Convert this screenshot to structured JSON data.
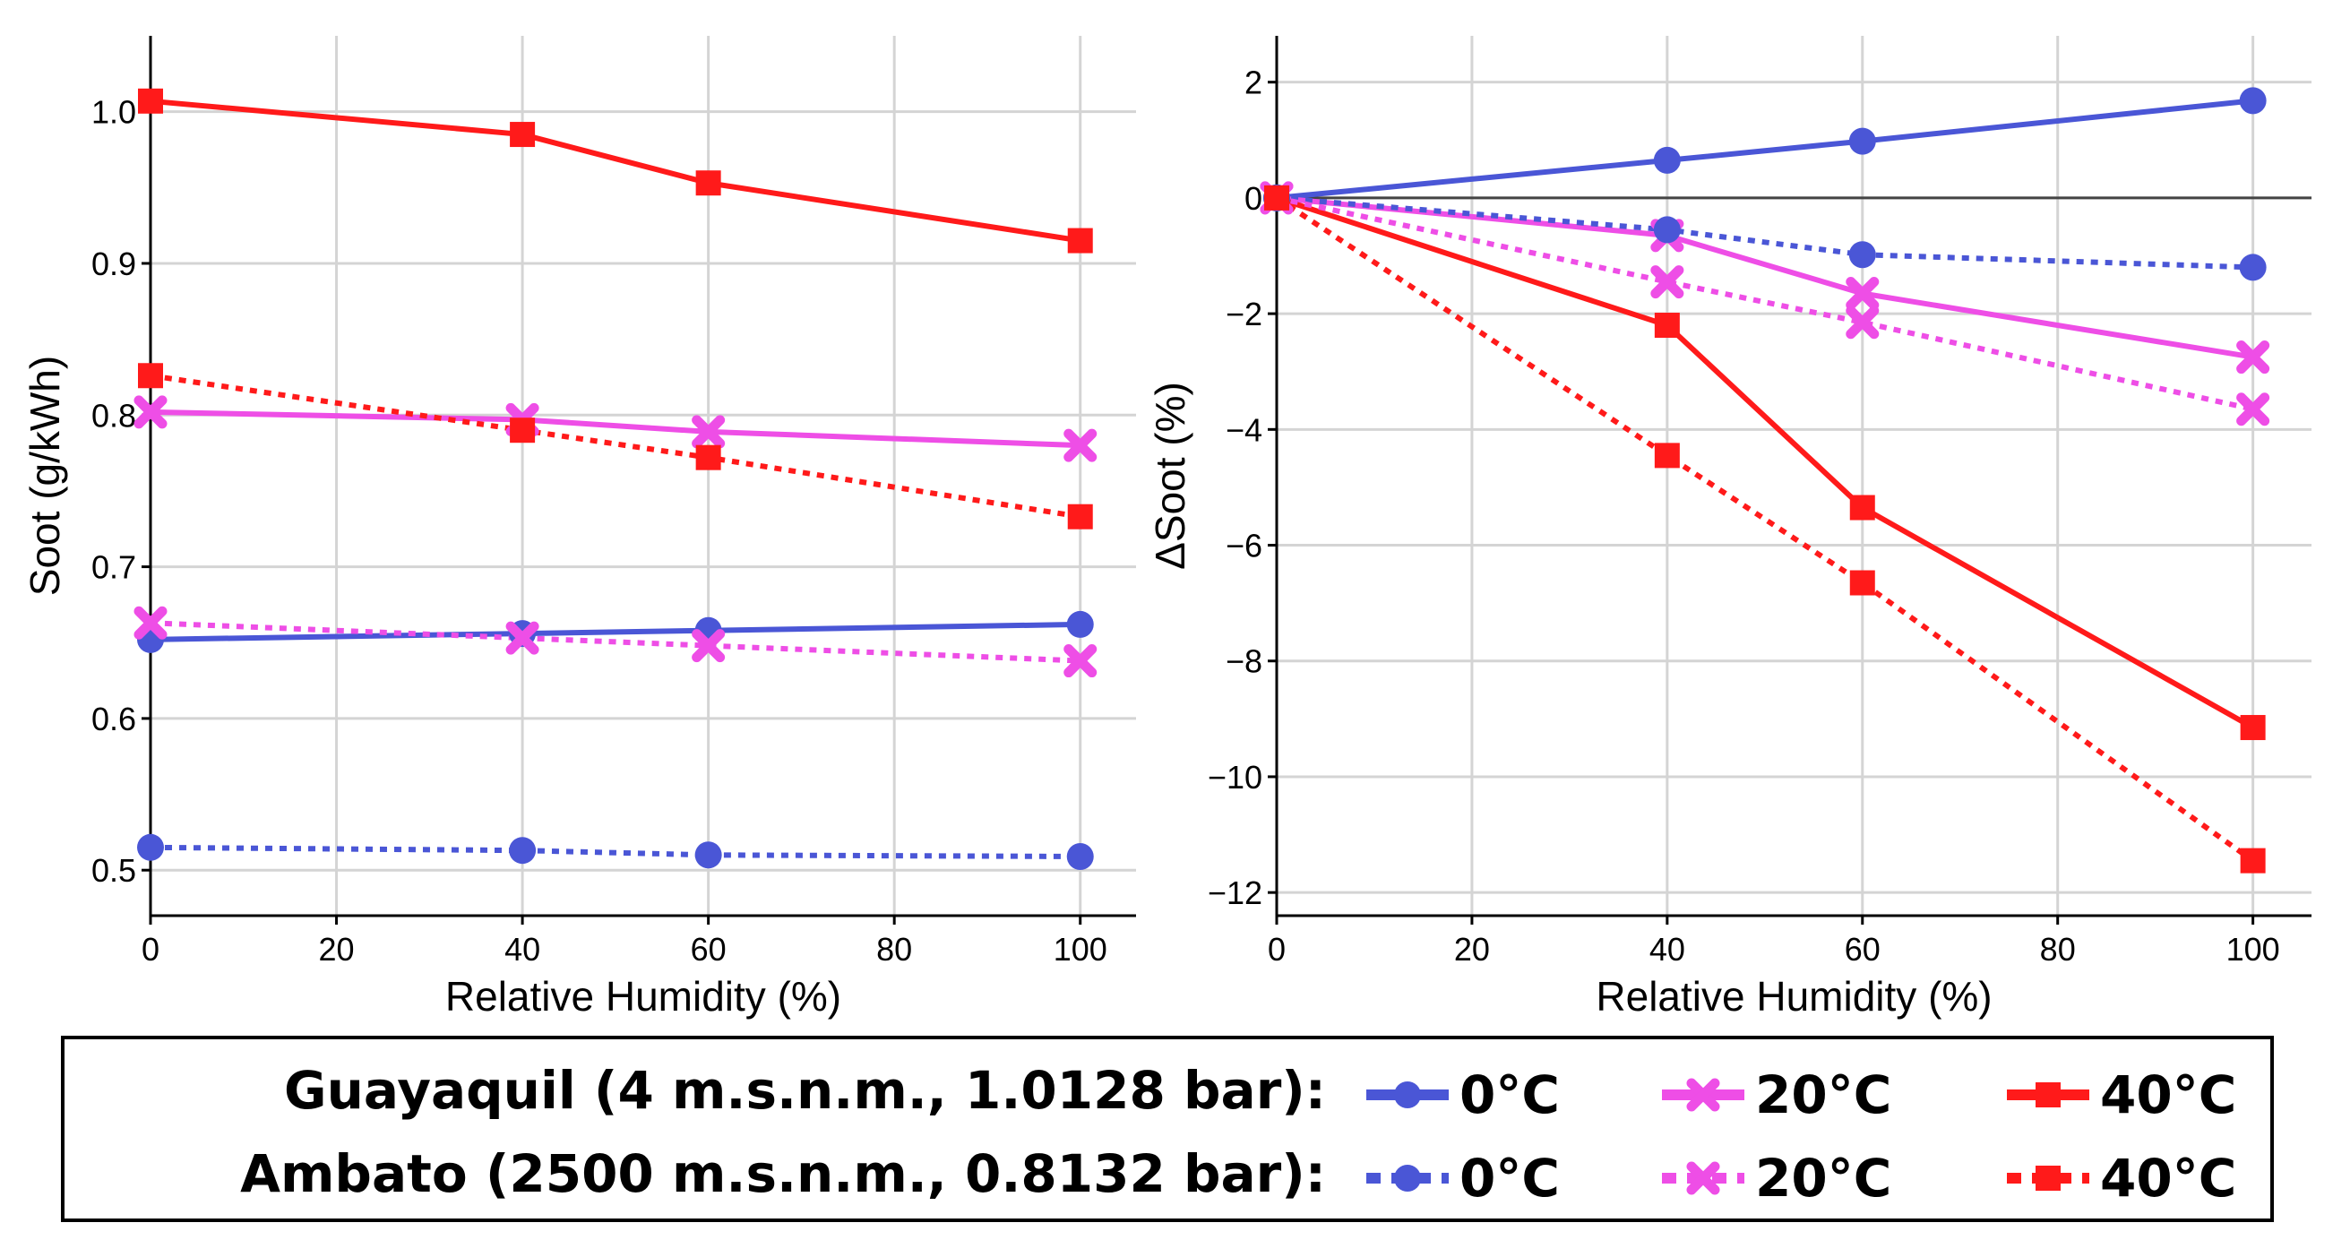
{
  "colors": {
    "c0": "#4a56d6",
    "c20": "#ee4ee6",
    "c40": "#ff1a1a"
  },
  "legend": {
    "row1_label": "Guayaquil (4 m.s.n.m., 1.0128 bar):",
    "row2_label": "Ambato (2500 m.s.n.m., 0.8132 bar):",
    "entries": [
      "0°C",
      "20°C",
      "40°C"
    ]
  },
  "chart_data": [
    {
      "type": "line",
      "xlabel": "Relative Humidity (%)",
      "ylabel": "Soot (g/kWh)",
      "xlim": [
        0,
        106
      ],
      "ylim": [
        0.47,
        1.05
      ],
      "xticks": [
        "0",
        "20",
        "40",
        "60",
        "80",
        "100"
      ],
      "yticks": [
        "0.5",
        "0.6",
        "0.7",
        "0.8",
        "0.9",
        "1.0"
      ],
      "grid": true,
      "x": [
        0,
        40,
        60,
        100
      ],
      "series": [
        {
          "name": "Guayaquil 0°C",
          "temp": "c0",
          "style": "solid",
          "marker": "circle",
          "values": [
            0.652,
            0.656,
            0.658,
            0.662
          ]
        },
        {
          "name": "Guayaquil 20°C",
          "temp": "c20",
          "style": "solid",
          "marker": "x",
          "values": [
            0.802,
            0.797,
            0.789,
            0.78
          ]
        },
        {
          "name": "Guayaquil 40°C",
          "temp": "c40",
          "style": "solid",
          "marker": "square",
          "values": [
            1.007,
            0.985,
            0.953,
            0.915
          ]
        },
        {
          "name": "Ambato 0°C",
          "temp": "c0",
          "style": "dotted",
          "marker": "circle",
          "values": [
            0.515,
            0.513,
            0.51,
            0.509
          ]
        },
        {
          "name": "Ambato 20°C",
          "temp": "c20",
          "style": "dotted",
          "marker": "x",
          "values": [
            0.663,
            0.653,
            0.648,
            0.638
          ]
        },
        {
          "name": "Ambato 40°C",
          "temp": "c40",
          "style": "dotted",
          "marker": "square",
          "values": [
            0.826,
            0.79,
            0.772,
            0.733
          ]
        }
      ]
    },
    {
      "type": "line",
      "xlabel": "Relative Humidity (%)",
      "ylabel": "ΔSoot (%)",
      "xlim": [
        0,
        106
      ],
      "ylim": [
        -12.4,
        2.8
      ],
      "xticks": [
        "0",
        "20",
        "40",
        "60",
        "80",
        "100"
      ],
      "yticks": [
        "2",
        "0",
        "−2",
        "−4",
        "−6",
        "−8",
        "−10",
        "−12"
      ],
      "grid": true,
      "zero_line": true,
      "x": [
        0,
        40,
        60,
        100
      ],
      "series": [
        {
          "name": "Guayaquil 0°C",
          "temp": "c0",
          "style": "solid",
          "marker": "circle",
          "values": [
            0,
            0.65,
            0.98,
            1.68
          ]
        },
        {
          "name": "Guayaquil 20°C",
          "temp": "c20",
          "style": "solid",
          "marker": "x",
          "values": [
            0,
            -0.65,
            -1.65,
            -2.75
          ]
        },
        {
          "name": "Guayaquil 40°C",
          "temp": "c40",
          "style": "solid",
          "marker": "square",
          "values": [
            0,
            -2.2,
            -5.35,
            -9.15
          ]
        },
        {
          "name": "Ambato 0°C",
          "temp": "c0",
          "style": "dotted",
          "marker": "circle",
          "values": [
            0,
            -0.55,
            -0.98,
            -1.2
          ]
        },
        {
          "name": "Ambato 20°C",
          "temp": "c20",
          "style": "dotted",
          "marker": "x",
          "values": [
            0,
            -1.45,
            -2.15,
            -3.65
          ]
        },
        {
          "name": "Ambato 40°C",
          "temp": "c40",
          "style": "dotted",
          "marker": "square",
          "values": [
            0,
            -4.45,
            -6.65,
            -11.45
          ]
        }
      ]
    }
  ]
}
